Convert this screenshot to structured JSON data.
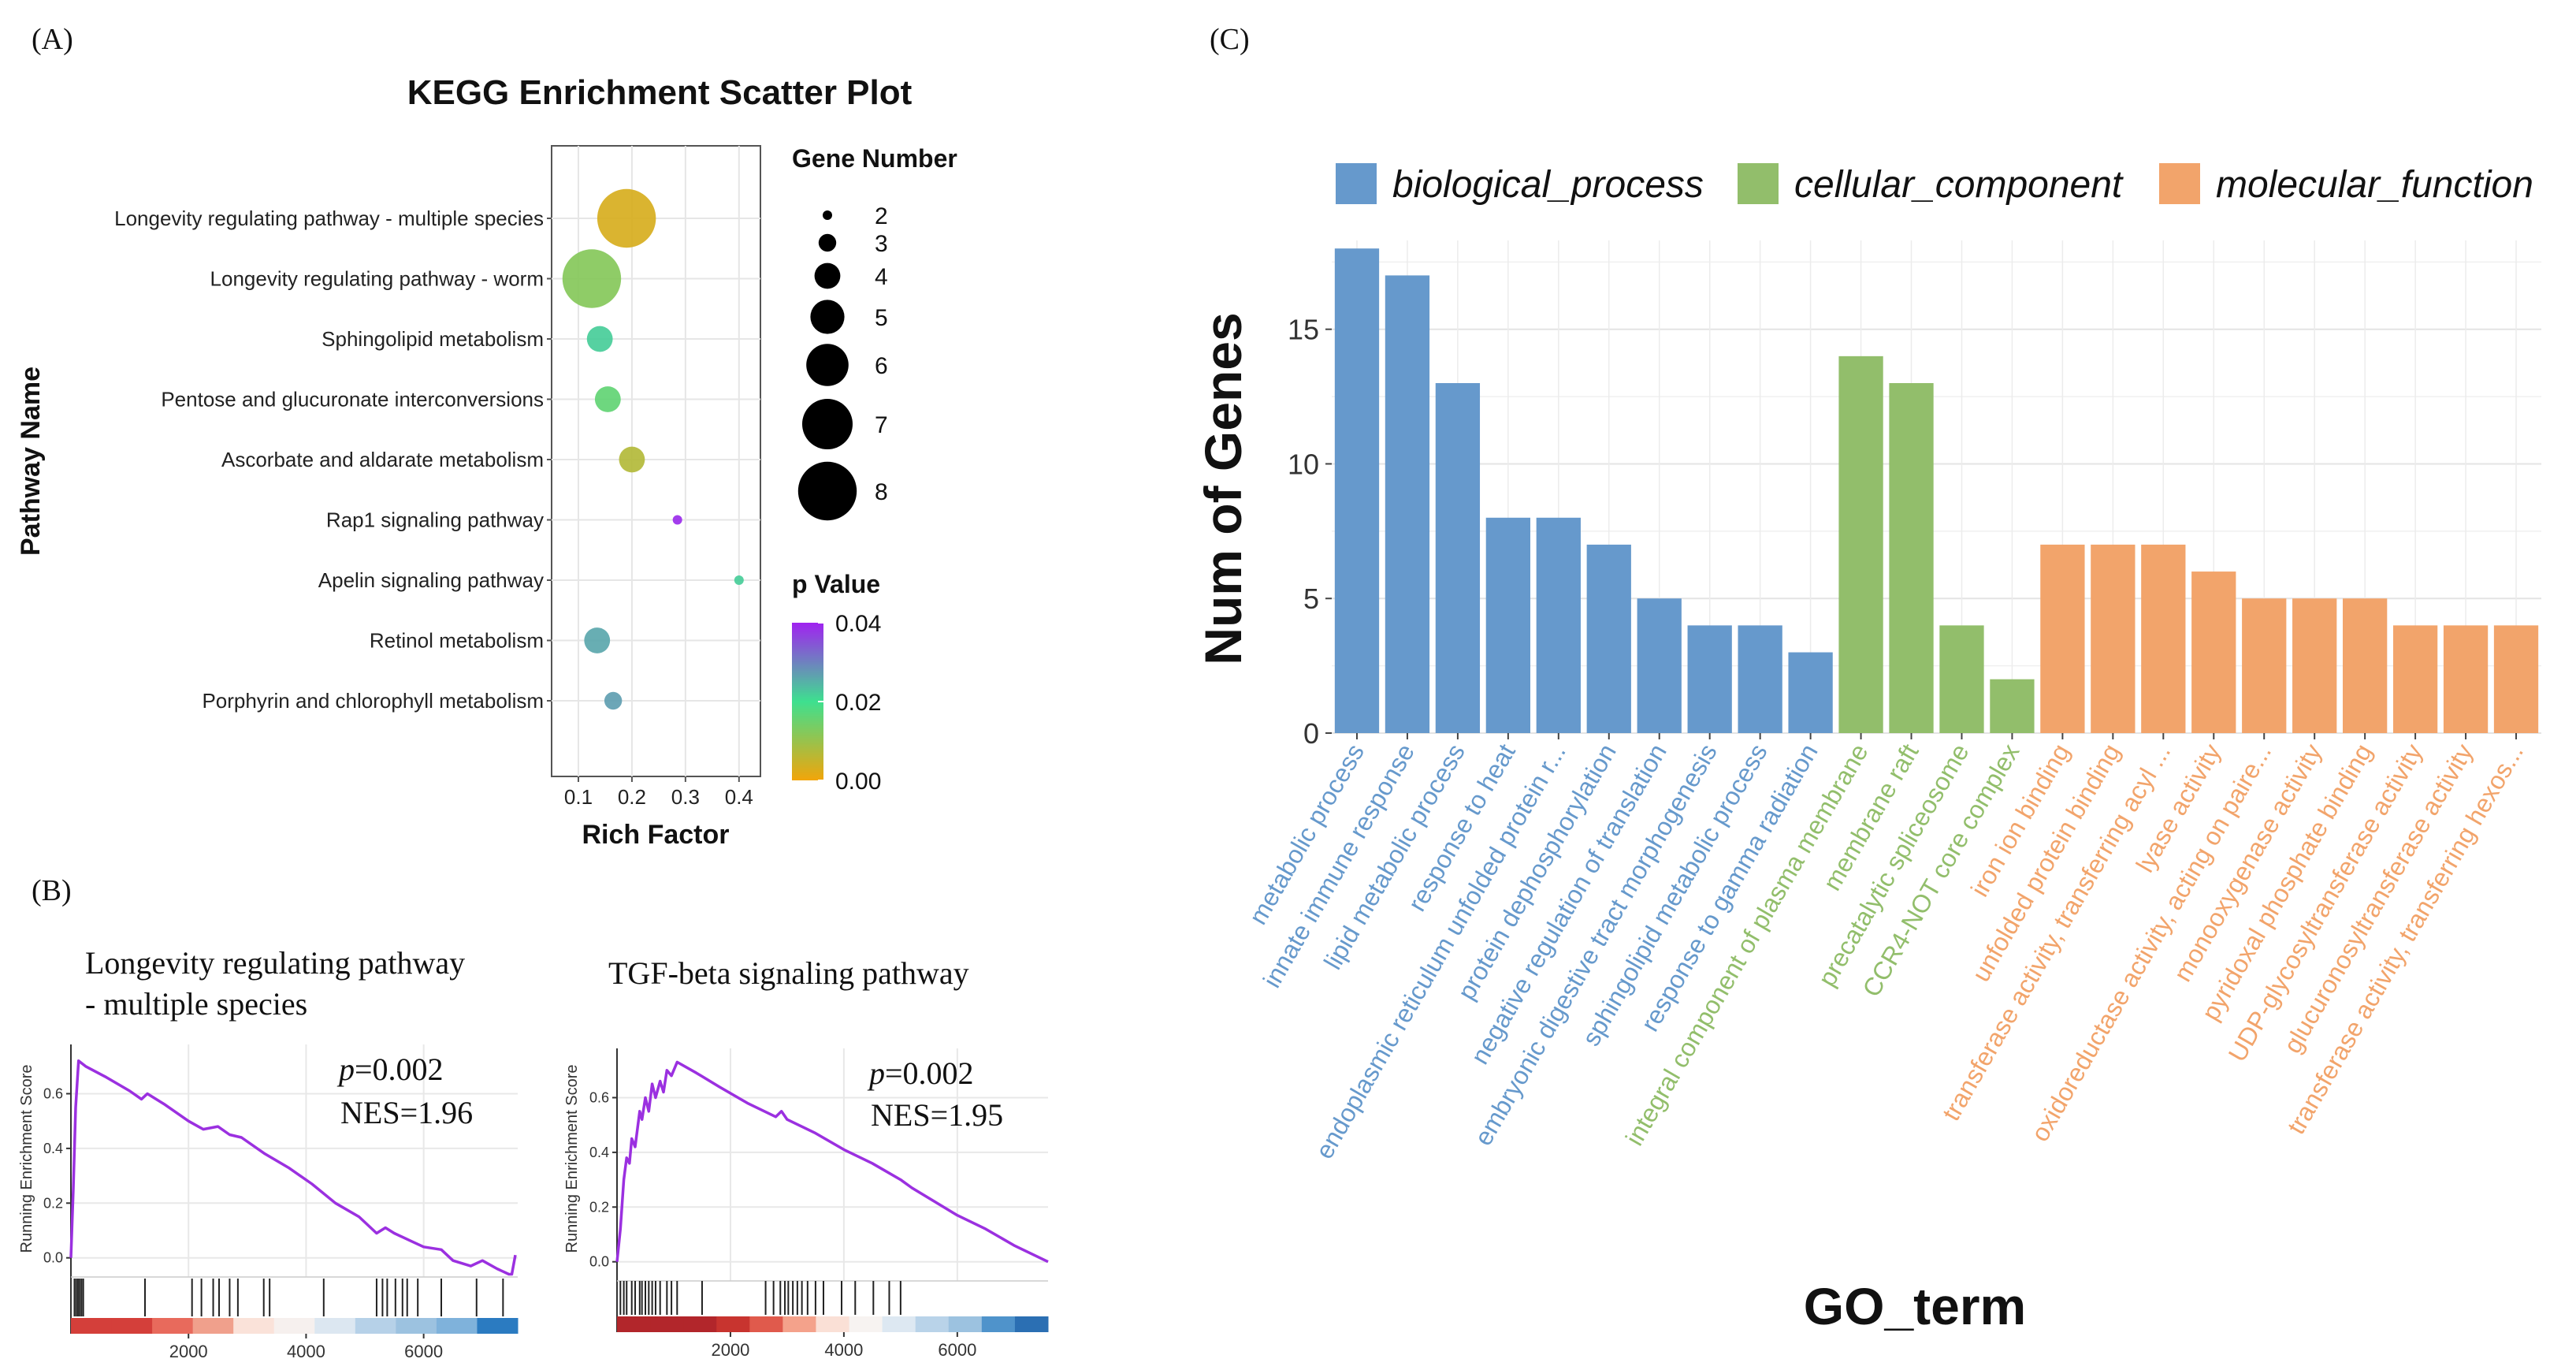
{
  "panel_labels": {
    "a": "(A)",
    "b": "(B)",
    "c": "(C)"
  },
  "chart_data": [
    {
      "id": "kegg",
      "type": "scatter",
      "title": "KEGG Enrichment Scatter Plot",
      "xlabel": "Rich Factor",
      "ylabel": "Pathway Name",
      "xlim": [
        0.05,
        0.44
      ],
      "xticks": [
        0.1,
        0.2,
        0.3,
        0.4
      ],
      "xtick_labels": [
        "0.1",
        "0.2",
        "0.3",
        "0.4"
      ],
      "categories": [
        "Longevity regulating pathway - multiple species",
        "Longevity regulating pathway - worm",
        "Sphingolipid metabolism",
        "Pentose and glucuronate interconversions",
        "Ascorbate and aldarate metabolism",
        "Rap1 signaling pathway",
        "Apelin signaling pathway",
        "Retinol metabolism",
        "Porphyrin and chlorophyll metabolism"
      ],
      "rich_factor": [
        0.19,
        0.125,
        0.14,
        0.155,
        0.2,
        0.285,
        0.4,
        0.135,
        0.165
      ],
      "gene_number": [
        8,
        8,
        4,
        4,
        4,
        2,
        2,
        4,
        3
      ],
      "p_value": [
        0.003,
        0.012,
        0.022,
        0.016,
        0.007,
        0.039,
        0.022,
        0.026,
        0.027
      ],
      "size_legend": {
        "title": "Gene Number",
        "values": [
          2,
          3,
          4,
          5,
          6,
          7,
          8
        ],
        "labels": [
          "2",
          "3",
          "4",
          "5",
          "6",
          "7",
          "8"
        ]
      },
      "color_legend": {
        "title": "p Value",
        "min": 0.0,
        "max": 0.04,
        "tick_values": [
          0.04,
          0.02,
          0.0
        ],
        "tick_labels": [
          "0.04",
          "0.02",
          "0.00"
        ],
        "colors": [
          "#f2a50a",
          "#3ee08f",
          "#a022f0"
        ]
      },
      "grid": true
    },
    {
      "id": "gsea1",
      "type": "line",
      "title": "Longevity regulating pathway - multiple species",
      "title_lines": [
        "Longevity regulating pathway",
        "- multiple species"
      ],
      "ylabel": "Running Enrichment Score",
      "p_prefix": "p",
      "p_text": "=0.002",
      "nes_text": "NES=1.96",
      "xlim": [
        0,
        7600
      ],
      "ylim": [
        -0.07,
        0.78
      ],
      "xticks": [
        2000,
        4000,
        6000
      ],
      "xtick_labels": [
        "2000",
        "4000",
        "6000"
      ],
      "yticks": [
        0.0,
        0.2,
        0.4,
        0.6
      ],
      "ytick_labels": [
        "0.0",
        "0.2",
        "0.4",
        "0.6"
      ],
      "x": [
        0,
        40,
        80,
        130,
        250,
        600,
        1000,
        1200,
        1300,
        1600,
        2000,
        2250,
        2500,
        2700,
        2900,
        3300,
        3700,
        4100,
        4500,
        4900,
        5200,
        5350,
        5500,
        5800,
        6000,
        6300,
        6500,
        6800,
        7000,
        7250,
        7450,
        7500,
        7560
      ],
      "y": [
        0.0,
        0.25,
        0.55,
        0.72,
        0.7,
        0.66,
        0.61,
        0.58,
        0.6,
        0.56,
        0.5,
        0.47,
        0.48,
        0.45,
        0.44,
        0.38,
        0.33,
        0.27,
        0.2,
        0.15,
        0.09,
        0.11,
        0.09,
        0.06,
        0.04,
        0.03,
        -0.01,
        -0.03,
        -0.01,
        -0.04,
        -0.06,
        -0.06,
        0.01
      ],
      "hits": [
        60,
        90,
        120,
        150,
        180,
        210,
        1260,
        2060,
        2220,
        2420,
        2520,
        2700,
        2840,
        3280,
        3380,
        4300,
        5200,
        5300,
        5380,
        5520,
        5640,
        5720,
        5900,
        6300,
        6900,
        7350
      ],
      "ranked_colors": [
        "#d43f3a",
        "#d43f3a",
        "#e86a5c",
        "#f0a08c",
        "#fae2d9",
        "#f6f0ee",
        "#dce7f1",
        "#b6d1e8",
        "#9cc2e0",
        "#7fb2db",
        "#2b7bc1"
      ]
    },
    {
      "id": "gsea2",
      "type": "line",
      "title": "TGF-beta signaling pathway",
      "ylabel": "Running Enrichment Score",
      "p_prefix": "p",
      "p_text": "=0.002",
      "nes_text": "NES=1.95",
      "xlim": [
        0,
        7600
      ],
      "ylim": [
        -0.07,
        0.78
      ],
      "xticks": [
        2000,
        4000,
        6000
      ],
      "xtick_labels": [
        "2000",
        "4000",
        "6000"
      ],
      "yticks": [
        0.0,
        0.2,
        0.4,
        0.6
      ],
      "ytick_labels": [
        "0.0",
        "0.2",
        "0.4",
        "0.6"
      ],
      "x": [
        0,
        60,
        120,
        170,
        220,
        260,
        320,
        400,
        440,
        500,
        560,
        620,
        680,
        760,
        820,
        880,
        960,
        1060,
        1400,
        1800,
        2300,
        2800,
        2900,
        3000,
        3500,
        4000,
        4500,
        5000,
        5200,
        5600,
        6000,
        6500,
        7000,
        7600
      ],
      "y": [
        0.0,
        0.12,
        0.3,
        0.38,
        0.36,
        0.45,
        0.42,
        0.55,
        0.52,
        0.6,
        0.55,
        0.65,
        0.6,
        0.66,
        0.62,
        0.7,
        0.68,
        0.73,
        0.69,
        0.64,
        0.58,
        0.53,
        0.55,
        0.52,
        0.47,
        0.41,
        0.36,
        0.3,
        0.27,
        0.22,
        0.17,
        0.12,
        0.06,
        0.0
      ],
      "hits": [
        60,
        120,
        170,
        260,
        320,
        400,
        440,
        500,
        560,
        620,
        680,
        760,
        880,
        960,
        1060,
        1500,
        2620,
        2760,
        2880,
        2960,
        3020,
        3100,
        3180,
        3260,
        3360,
        3500,
        3640,
        3960,
        4200,
        4520,
        4800,
        5000
      ],
      "ranked_colors": [
        "#b2262b",
        "#b2262b",
        "#b2262b",
        "#c8342f",
        "#e05a4c",
        "#f4a28b",
        "#fae0d6",
        "#f7f3f1",
        "#dde8f2",
        "#b9d3e9",
        "#9cc2e0",
        "#4f93cb",
        "#2b6fb3"
      ]
    },
    {
      "id": "go",
      "type": "bar",
      "xlabel": "GO_term",
      "ylabel": "Num of Genes",
      "ylim": [
        0,
        18.3
      ],
      "yticks": [
        0,
        5,
        10,
        15
      ],
      "ytick_labels": [
        "0",
        "5",
        "10",
        "15"
      ],
      "legend": [
        {
          "name": "biological_process",
          "color": "#6699cc"
        },
        {
          "name": "cellular_component",
          "color": "#92be6b"
        },
        {
          "name": "molecular_function",
          "color": "#f2a46b"
        }
      ],
      "categories": [
        "metabolic process",
        "innate immune response",
        "lipid metabolic process",
        "response to heat",
        "endoplasmic reticulum unfolded protein r...",
        "protein dephosphorylation",
        "negative regulation of translation",
        "embryonic digestive tract morphogenesis",
        "sphingolipid metabolic process",
        "response to gamma radiation",
        "integral component of plasma membrane",
        "membrane raft",
        "precatalytic spliceosome",
        "CCR4-NOT core complex",
        "iron ion binding",
        "unfolded protein binding",
        "transferase activity, transferring acyl ...",
        "lyase activity",
        "oxidoreductase activity, acting on paire...",
        "monooxygenase activity",
        "pyridoxal phosphate binding",
        "UDP-glycosyltransferase activity",
        "glucuronosyltransferase activity",
        "transferase activity, transferring hexos..."
      ],
      "values": [
        18,
        17,
        13,
        8,
        8,
        7,
        5,
        4,
        4,
        3,
        14,
        13,
        4,
        2,
        7,
        7,
        7,
        6,
        5,
        5,
        5,
        4,
        4,
        4
      ],
      "groups": [
        0,
        0,
        0,
        0,
        0,
        0,
        0,
        0,
        0,
        0,
        1,
        1,
        1,
        1,
        2,
        2,
        2,
        2,
        2,
        2,
        2,
        2,
        2,
        2
      ]
    }
  ]
}
